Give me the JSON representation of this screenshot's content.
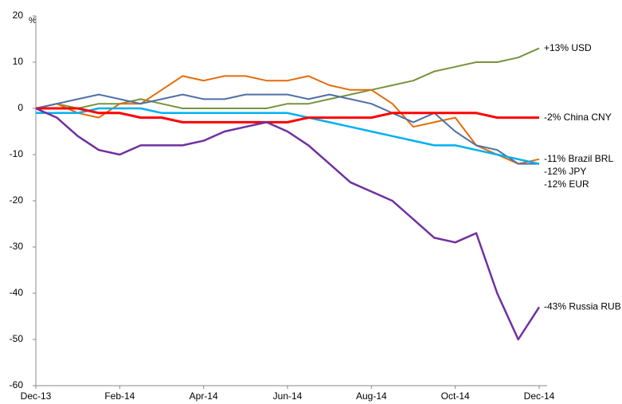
{
  "chart_data": {
    "type": "line",
    "unit_label": "%",
    "categories": [
      "Dec-13",
      null,
      null,
      null,
      "Feb-14",
      null,
      null,
      null,
      "Apr-14",
      null,
      null,
      null,
      "Jun-14",
      null,
      null,
      null,
      "Aug-14",
      null,
      null,
      null,
      "Oct-14",
      null,
      null,
      null,
      "Dec-14"
    ],
    "ylim": [
      -60,
      20
    ],
    "yticks": [
      -60,
      -50,
      -40,
      -30,
      -20,
      -10,
      0,
      10,
      20
    ],
    "series": [
      {
        "name": "+13% USD",
        "color": "#77933c",
        "label_color": "#77933c",
        "width": 2,
        "values": [
          0,
          1,
          0,
          1,
          1,
          2,
          1,
          0,
          0,
          0,
          0,
          0,
          1,
          1,
          2,
          3,
          4,
          5,
          6,
          8,
          9,
          10,
          10,
          11,
          13
        ]
      },
      {
        "name": "-11% Brazil BRL",
        "color": "#e46c0a",
        "label_color": "#000000",
        "width": 2,
        "values": [
          0,
          1,
          -1,
          -2,
          1,
          1,
          4,
          7,
          6,
          7,
          7,
          6,
          6,
          7,
          5,
          4,
          4,
          1,
          -4,
          -3,
          -2,
          -8,
          -10,
          -12,
          -11
        ]
      },
      {
        "name": "-12% JPY",
        "color": "#4f6fa8",
        "label_color": "#000000",
        "width": 2,
        "values": [
          0,
          1,
          2,
          3,
          2,
          1,
          2,
          3,
          2,
          2,
          3,
          3,
          3,
          2,
          3,
          2,
          1,
          -1,
          -3,
          -1,
          -5,
          -8,
          -9,
          -12,
          -12
        ]
      },
      {
        "name": "-12% EUR",
        "color": "#00b0f0",
        "label_color": "#000000",
        "width": 2.5,
        "values": [
          -1,
          -1,
          -1,
          0,
          0,
          0,
          -1,
          -1,
          -1,
          -1,
          -1,
          -1,
          -1,
          -2,
          -3,
          -4,
          -5,
          -6,
          -7,
          -8,
          -8,
          -9,
          -10,
          -11,
          -12
        ]
      },
      {
        "name": "-2% China CNY",
        "color": "#ff0000",
        "label_color": "#ff0000",
        "width": 3,
        "values": [
          0,
          0,
          0,
          -1,
          -1,
          -2,
          -2,
          -3,
          -3,
          -3,
          -3,
          -3,
          -3,
          -2,
          -2,
          -2,
          -2,
          -1,
          -1,
          -1,
          -1,
          -1,
          -2,
          -2,
          -2
        ]
      },
      {
        "name": "-43% Russia RUB",
        "color": "#7030a0",
        "label_color": "#000000",
        "width": 2.5,
        "values": [
          0,
          -2,
          -6,
          -9,
          -10,
          -8,
          -8,
          -8,
          -7,
          -5,
          -4,
          -3,
          -5,
          -8,
          -12,
          -16,
          -18,
          -20,
          -24,
          -28,
          -29,
          -27,
          -40,
          -50,
          -43
        ]
      }
    ]
  }
}
